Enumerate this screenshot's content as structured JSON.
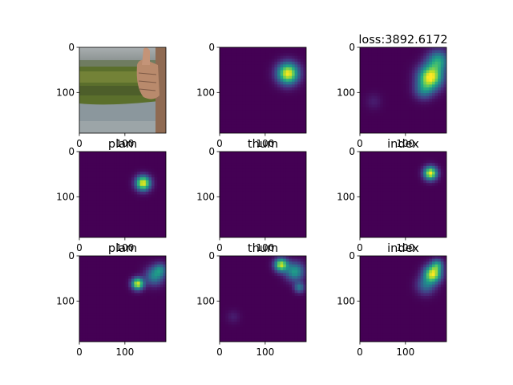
{
  "figure": {
    "loss_title": "loss:3892.6172"
  },
  "chart_data": [
    {
      "type": "heatmap",
      "panel": "image",
      "title": "",
      "content": "rgb-photo-hand-thumb-up-lake",
      "xlim": [
        0,
        190
      ],
      "ylim": [
        190,
        0
      ],
      "xticks": [
        0,
        100
      ],
      "yticks": [
        0,
        100
      ]
    },
    {
      "type": "heatmap",
      "panel": "target-sum",
      "title": "",
      "blobs": [
        {
          "x": 150,
          "y": 58,
          "sigma": 16,
          "amp": 1.0
        }
      ]
    },
    {
      "type": "heatmap",
      "panel": "pred-sum",
      "title": "loss:3892.6172",
      "blobs": [
        {
          "x": 155,
          "y": 66,
          "sigma": 18,
          "amp": 1.0
        },
        {
          "x": 172,
          "y": 30,
          "sigma": 16,
          "amp": 0.55
        },
        {
          "x": 140,
          "y": 95,
          "sigma": 14,
          "amp": 0.35
        },
        {
          "x": 30,
          "y": 120,
          "sigma": 12,
          "amp": 0.08
        }
      ]
    },
    {
      "type": "heatmap",
      "panel": "target-plam",
      "title": "plam",
      "blobs": [
        {
          "x": 140,
          "y": 70,
          "sigma": 11,
          "amp": 1.0
        }
      ]
    },
    {
      "type": "heatmap",
      "panel": "target-thum",
      "title": "thum",
      "blobs": []
    },
    {
      "type": "heatmap",
      "panel": "target-index",
      "title": "index",
      "blobs": [
        {
          "x": 155,
          "y": 48,
          "sigma": 10,
          "amp": 1.0
        }
      ]
    },
    {
      "type": "heatmap",
      "panel": "pred-plam",
      "title": "plam",
      "blobs": [
        {
          "x": 128,
          "y": 62,
          "sigma": 9,
          "amp": 0.95
        },
        {
          "x": 165,
          "y": 45,
          "sigma": 14,
          "amp": 0.45
        },
        {
          "x": 178,
          "y": 30,
          "sigma": 10,
          "amp": 0.35
        }
      ]
    },
    {
      "type": "heatmap",
      "panel": "pred-thum",
      "title": "thum",
      "blobs": [
        {
          "x": 135,
          "y": 20,
          "sigma": 10,
          "amp": 0.9
        },
        {
          "x": 165,
          "y": 35,
          "sigma": 14,
          "amp": 0.55
        },
        {
          "x": 175,
          "y": 70,
          "sigma": 8,
          "amp": 0.4
        },
        {
          "x": 30,
          "y": 135,
          "sigma": 10,
          "amp": 0.08
        }
      ]
    },
    {
      "type": "heatmap",
      "panel": "pred-index",
      "title": "index",
      "blobs": [
        {
          "x": 160,
          "y": 40,
          "sigma": 13,
          "amp": 0.95
        },
        {
          "x": 170,
          "y": 20,
          "sigma": 9,
          "amp": 0.45
        },
        {
          "x": 145,
          "y": 65,
          "sigma": 14,
          "amp": 0.35
        }
      ]
    }
  ]
}
